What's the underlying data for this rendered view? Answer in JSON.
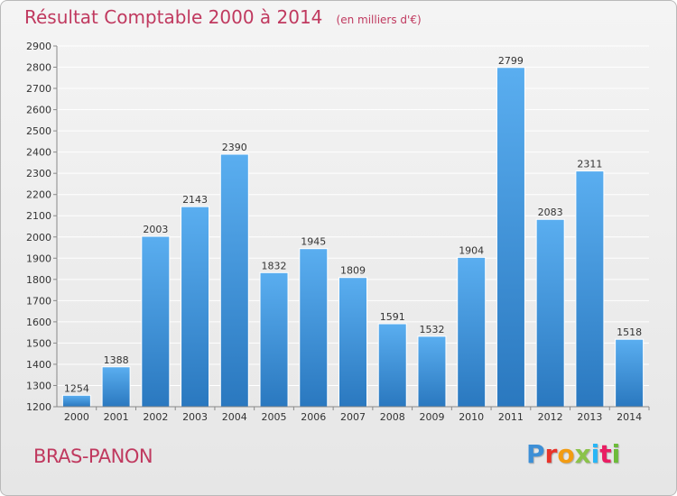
{
  "header": {
    "title": "Résultat Comptable 2000 à 2014",
    "subtitle": "(en milliers d'€)"
  },
  "footer": {
    "place": "BRAS-PANON",
    "logo_letters": [
      "P",
      "r",
      "o",
      "x",
      "i",
      "t",
      "i"
    ],
    "logo_colors": [
      "#3d8fd6",
      "#e8332a",
      "#f39c12",
      "#8bc34a",
      "#29b6f6",
      "#e91e63",
      "#6dbb3a"
    ]
  },
  "colors": {
    "bar_top": "#5aaef0",
    "bar_bottom": "#2a78bf",
    "title": "#c0395f",
    "grid": "#ffffff",
    "text": "#333333"
  },
  "chart_data": {
    "type": "bar",
    "categories": [
      "2000",
      "2001",
      "2002",
      "2003",
      "2004",
      "2005",
      "2006",
      "2007",
      "2008",
      "2009",
      "2010",
      "2011",
      "2012",
      "2013",
      "2014"
    ],
    "values": [
      1254,
      1388,
      2003,
      2143,
      2390,
      1832,
      1945,
      1809,
      1591,
      1532,
      1904,
      2799,
      2083,
      2311,
      1518
    ],
    "title": "Résultat Comptable 2000 à 2014",
    "xlabel": "",
    "ylabel": "",
    "ylim": [
      1200,
      2900
    ],
    "yticks": [
      1200,
      1300,
      1400,
      1500,
      1600,
      1700,
      1800,
      1900,
      2000,
      2100,
      2200,
      2300,
      2400,
      2500,
      2600,
      2700,
      2800,
      2900
    ],
    "grid": true,
    "legend": "none"
  }
}
